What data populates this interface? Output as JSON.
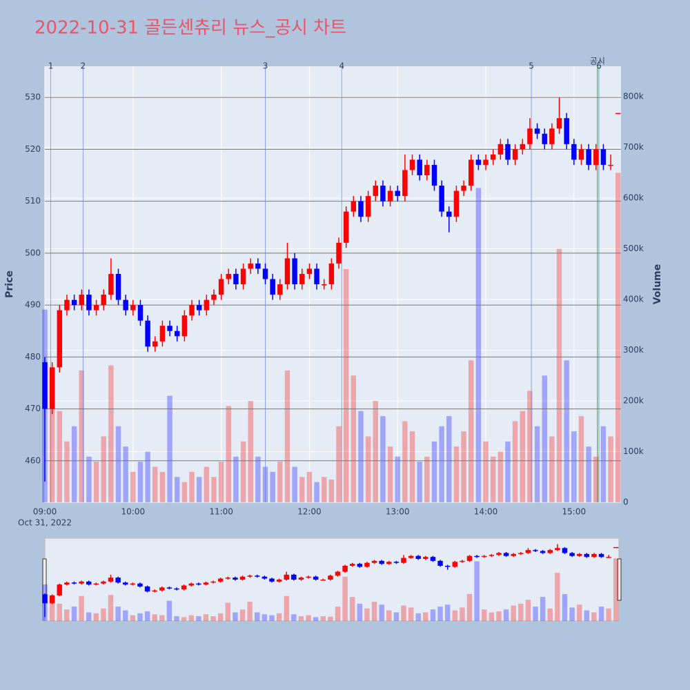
{
  "chart_data": {
    "type": "candlestick",
    "title": "2022-10-31 골든센츄리 뉴스_공시 차트",
    "x_date_label": "Oct 31, 2022",
    "y_title": "Price",
    "y2_title": "Volume",
    "up_color": "#ff0000",
    "down_color": "#0000ff",
    "x": [
      "09:00",
      "09:05",
      "09:10",
      "09:15",
      "09:20",
      "09:25",
      "09:30",
      "09:35",
      "09:40",
      "09:45",
      "09:50",
      "09:55",
      "10:00",
      "10:05",
      "10:10",
      "10:15",
      "10:20",
      "10:25",
      "10:30",
      "10:35",
      "10:40",
      "10:45",
      "10:50",
      "10:55",
      "11:00",
      "11:05",
      "11:10",
      "11:15",
      "11:20",
      "11:25",
      "11:30",
      "11:35",
      "11:40",
      "11:45",
      "11:50",
      "11:55",
      "12:00",
      "12:05",
      "12:10",
      "12:15",
      "12:20",
      "12:25",
      "12:30",
      "12:35",
      "12:40",
      "12:45",
      "12:50",
      "12:55",
      "13:00",
      "13:05",
      "13:10",
      "13:15",
      "13:20",
      "13:25",
      "13:30",
      "13:35",
      "13:40",
      "13:45",
      "13:50",
      "13:55",
      "14:00",
      "14:05",
      "14:10",
      "14:15",
      "14:20",
      "14:25",
      "14:30",
      "14:35",
      "14:40",
      "14:45",
      "14:50",
      "14:55",
      "15:00",
      "15:05",
      "15:10",
      "15:15",
      "15:20",
      "15:25",
      "15:30"
    ],
    "open": [
      479,
      470,
      478,
      489,
      491,
      490,
      492,
      489,
      490,
      492,
      496,
      491,
      489,
      490,
      487,
      482,
      483,
      486,
      485,
      484,
      488,
      490,
      489,
      491,
      492,
      495,
      496,
      494,
      497,
      498,
      497,
      495,
      492,
      494,
      499,
      494,
      496,
      497,
      494,
      494,
      498,
      502,
      508,
      510,
      507,
      511,
      513,
      510,
      512,
      511,
      516,
      518,
      515,
      517,
      513,
      508,
      507,
      512,
      513,
      518,
      517,
      518,
      519,
      521,
      518,
      520,
      521,
      524,
      523,
      521,
      524,
      526,
      521,
      518,
      520,
      517,
      520,
      517,
      527
    ],
    "high": [
      480,
      479,
      490,
      492,
      492,
      493,
      493,
      491,
      493,
      499,
      497,
      492,
      491,
      491,
      488,
      484,
      487,
      487,
      486,
      489,
      491,
      491,
      492,
      493,
      496,
      497,
      497,
      498,
      499,
      499,
      498,
      496,
      495,
      502,
      500,
      497,
      498,
      498,
      495,
      499,
      503,
      509,
      511,
      511,
      512,
      514,
      514,
      513,
      513,
      519,
      519,
      519,
      518,
      518,
      514,
      509,
      513,
      514,
      519,
      519,
      519,
      520,
      522,
      522,
      521,
      522,
      526,
      525,
      524,
      525,
      530,
      527,
      522,
      521,
      521,
      521,
      521,
      519,
      527
    ],
    "low": [
      456,
      469,
      477,
      488,
      489,
      489,
      488,
      488,
      489,
      491,
      490,
      488,
      488,
      486,
      481,
      481,
      482,
      484,
      483,
      483,
      487,
      488,
      488,
      490,
      491,
      494,
      493,
      493,
      496,
      496,
      494,
      491,
      491,
      493,
      493,
      493,
      495,
      493,
      493,
      493,
      497,
      501,
      507,
      506,
      506,
      510,
      509,
      509,
      510,
      510,
      515,
      514,
      514,
      512,
      507,
      504,
      506,
      511,
      512,
      516,
      516,
      517,
      518,
      517,
      517,
      519,
      520,
      522,
      520,
      520,
      523,
      520,
      517,
      517,
      516,
      516,
      516,
      516,
      527
    ],
    "close": [
      470,
      478,
      489,
      491,
      490,
      492,
      489,
      490,
      492,
      496,
      491,
      489,
      490,
      487,
      482,
      483,
      486,
      485,
      484,
      488,
      490,
      489,
      491,
      492,
      495,
      496,
      494,
      497,
      498,
      497,
      495,
      492,
      494,
      499,
      494,
      496,
      497,
      494,
      494,
      498,
      502,
      508,
      510,
      507,
      511,
      513,
      510,
      512,
      511,
      516,
      518,
      515,
      517,
      513,
      508,
      507,
      512,
      513,
      518,
      517,
      518,
      519,
      521,
      518,
      520,
      521,
      524,
      523,
      521,
      524,
      526,
      521,
      518,
      520,
      517,
      520,
      517,
      517,
      527
    ],
    "volume": [
      380000,
      250000,
      180000,
      120000,
      150000,
      260000,
      90000,
      80000,
      130000,
      270000,
      150000,
      110000,
      60000,
      80000,
      100000,
      70000,
      60000,
      210000,
      50000,
      40000,
      60000,
      50000,
      70000,
      50000,
      80000,
      190000,
      90000,
      120000,
      200000,
      90000,
      70000,
      60000,
      80000,
      260000,
      70000,
      50000,
      60000,
      40000,
      50000,
      45000,
      150000,
      460000,
      250000,
      180000,
      130000,
      200000,
      170000,
      110000,
      90000,
      160000,
      140000,
      80000,
      90000,
      120000,
      150000,
      170000,
      110000,
      140000,
      280000,
      620000,
      120000,
      90000,
      100000,
      120000,
      160000,
      180000,
      220000,
      150000,
      250000,
      130000,
      500000,
      280000,
      140000,
      170000,
      110000,
      90000,
      150000,
      130000,
      650000
    ],
    "xlim": [
      "09:00",
      "15:32"
    ],
    "xticks": [
      "09:00",
      "10:00",
      "11:00",
      "12:00",
      "13:00",
      "14:00",
      "15:00"
    ],
    "ylim": [
      452,
      536
    ],
    "yticks": [
      460,
      470,
      480,
      490,
      500,
      510,
      520,
      530
    ],
    "y2lim": [
      0,
      860000
    ],
    "y2ticks": [
      0,
      {
        "value": 100000,
        "label": "100k"
      },
      {
        "value": 200000,
        "label": "200k"
      },
      {
        "value": 300000,
        "label": "300k"
      },
      {
        "value": 400000,
        "label": "400k"
      },
      {
        "value": 500000,
        "label": "500k"
      },
      {
        "value": 600000,
        "label": "600k"
      },
      {
        "value": 700000,
        "label": "700k"
      },
      {
        "value": 800000,
        "label": "800k"
      }
    ],
    "news": [
      {
        "label": "1",
        "x": "09:04"
      },
      {
        "label": "2",
        "x": "09:26"
      },
      {
        "label": "3",
        "x": "11:30"
      },
      {
        "label": "4",
        "x": "12:22"
      },
      {
        "label": "5",
        "x": "14:31"
      },
      {
        "label": "6",
        "x": "15:17"
      }
    ],
    "disclosure": {
      "label": "공시",
      "x": "15:16",
      "color": "#2ca02c"
    },
    "news_color": "#6a7fe8",
    "grid": true
  }
}
